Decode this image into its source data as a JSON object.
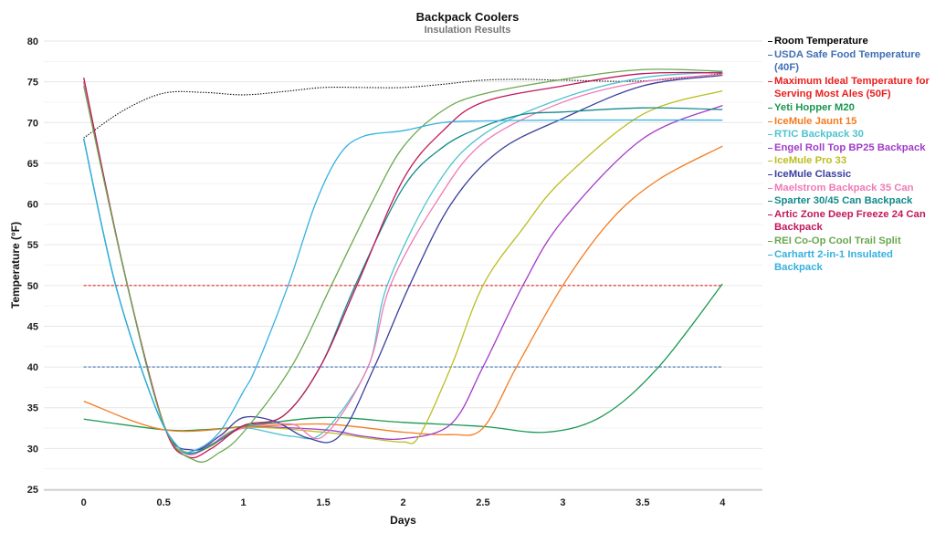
{
  "chart_data": {
    "type": "line",
    "title": "Backpack Coolers",
    "subtitle": "Insulation Results",
    "xlabel": "Days",
    "ylabel": "Temperature (°F)",
    "xlim": [
      -0.25,
      4.25
    ],
    "ylim": [
      25,
      80
    ],
    "xticks": [
      "0",
      "0.5",
      "1",
      "1.5",
      "2",
      "2.5",
      "3",
      "3.5",
      "4"
    ],
    "yticks": [
      "25",
      "30",
      "35",
      "40",
      "45",
      "50",
      "55",
      "60",
      "65",
      "70",
      "75",
      "80"
    ],
    "grid": true,
    "legend_position": "right",
    "series": [
      {
        "name": "Room Temperature",
        "color": "#111111",
        "style": "dotted",
        "points": [
          [
            0,
            68.1
          ],
          [
            0.25,
            71.5
          ],
          [
            0.5,
            73.6
          ],
          [
            0.75,
            73.7
          ],
          [
            1,
            73.4
          ],
          [
            1.25,
            73.8
          ],
          [
            1.5,
            74.3
          ],
          [
            1.75,
            74.3
          ],
          [
            2,
            74.3
          ],
          [
            2.25,
            74.7
          ],
          [
            2.5,
            75.2
          ],
          [
            2.75,
            75.3
          ],
          [
            3,
            75.2
          ],
          [
            3.5,
            75.1
          ],
          [
            4,
            76
          ]
        ]
      },
      {
        "name": "USDA Safe Food Temperature (40F)",
        "color": "#3e6fb5",
        "style": "dashed",
        "points": [
          [
            0,
            40
          ],
          [
            4,
            40
          ]
        ]
      },
      {
        "name": "Maximum Ideal Temperature for Serving Most Ales (50F)",
        "color": "#e8201d",
        "style": "dashed",
        "points": [
          [
            0,
            50
          ],
          [
            4,
            50
          ]
        ]
      },
      {
        "name": "Yeti Hopper M20",
        "color": "#1a9850",
        "style": "solid",
        "points": [
          [
            0,
            33.6
          ],
          [
            0.5,
            32.3
          ],
          [
            0.75,
            32.3
          ],
          [
            1,
            32.7
          ],
          [
            1.5,
            33.8
          ],
          [
            2,
            33.2
          ],
          [
            2.5,
            32.7
          ],
          [
            2.9,
            32
          ],
          [
            3.25,
            34
          ],
          [
            3.6,
            40
          ],
          [
            4,
            50.2
          ]
        ]
      },
      {
        "name": "IceMule Jaunt 15",
        "color": "#f47b20",
        "style": "solid",
        "points": [
          [
            0,
            35.8
          ],
          [
            0.5,
            32.3
          ],
          [
            1,
            32.6
          ],
          [
            1.5,
            33
          ],
          [
            2,
            32
          ],
          [
            2.3,
            31.7
          ],
          [
            2.5,
            32.5
          ],
          [
            2.71,
            40
          ],
          [
            3,
            50
          ],
          [
            3.3,
            58
          ],
          [
            3.6,
            63
          ],
          [
            4,
            67.1
          ]
        ]
      },
      {
        "name": "RTIC Backpack 30",
        "color": "#4fc3d0",
        "style": "solid",
        "points": [
          [
            0,
            68
          ],
          [
            0.2,
            50
          ],
          [
            0.45,
            35
          ],
          [
            0.6,
            30
          ],
          [
            0.7,
            29.8
          ],
          [
            0.85,
            31
          ],
          [
            1,
            32.5
          ],
          [
            1.3,
            31.5
          ],
          [
            1.5,
            32
          ],
          [
            1.78,
            40
          ],
          [
            1.9,
            50
          ],
          [
            2.2,
            62
          ],
          [
            2.5,
            68.5
          ],
          [
            3,
            73
          ],
          [
            3.5,
            75.5
          ],
          [
            4,
            76.2
          ]
        ]
      },
      {
        "name": "Engel Roll Top BP25 Backpack",
        "color": "#a23cc8",
        "style": "solid",
        "points": [
          [
            0,
            75
          ],
          [
            0.25,
            52
          ],
          [
            0.5,
            33
          ],
          [
            0.65,
            29.5
          ],
          [
            0.8,
            30.5
          ],
          [
            1,
            32.5
          ],
          [
            1.5,
            32.3
          ],
          [
            1.75,
            31.5
          ],
          [
            2,
            31.2
          ],
          [
            2.3,
            33
          ],
          [
            2.5,
            40
          ],
          [
            2.75,
            50
          ],
          [
            3,
            58
          ],
          [
            3.5,
            68
          ],
          [
            4,
            72.1
          ]
        ]
      },
      {
        "name": "IceMule Pro 33",
        "color": "#bcbd22",
        "style": "solid",
        "points": [
          [
            0,
            75
          ],
          [
            0.25,
            52
          ],
          [
            0.5,
            33
          ],
          [
            0.65,
            29.5
          ],
          [
            0.8,
            30.3
          ],
          [
            1,
            32.5
          ],
          [
            1.5,
            32
          ],
          [
            1.8,
            31.2
          ],
          [
            2,
            30.8
          ],
          [
            2.1,
            31.5
          ],
          [
            2.3,
            40
          ],
          [
            2.5,
            50
          ],
          [
            2.75,
            57
          ],
          [
            3,
            63
          ],
          [
            3.5,
            71
          ],
          [
            4,
            73.9
          ]
        ]
      },
      {
        "name": "IceMule Classic",
        "color": "#3a3f9e",
        "style": "solid",
        "points": [
          [
            0,
            75
          ],
          [
            0.25,
            52
          ],
          [
            0.5,
            33
          ],
          [
            0.68,
            29.8
          ],
          [
            0.85,
            31.5
          ],
          [
            1,
            33.8
          ],
          [
            1.2,
            33.3
          ],
          [
            1.4,
            31.3
          ],
          [
            1.6,
            31.5
          ],
          [
            1.82,
            40
          ],
          [
            2.04,
            50
          ],
          [
            2.3,
            60
          ],
          [
            2.6,
            66.5
          ],
          [
            3,
            70.5
          ],
          [
            3.5,
            74.5
          ],
          [
            4,
            75.8
          ]
        ]
      },
      {
        "name": "Maelstrom Backpack 35 Can",
        "color": "#f07ab6",
        "style": "solid",
        "points": [
          [
            0,
            75
          ],
          [
            0.25,
            52
          ],
          [
            0.5,
            33
          ],
          [
            0.65,
            29.3
          ],
          [
            0.8,
            30.5
          ],
          [
            1,
            32.5
          ],
          [
            1.3,
            33
          ],
          [
            1.5,
            31.5
          ],
          [
            1.78,
            40
          ],
          [
            1.92,
            50
          ],
          [
            2.2,
            60
          ],
          [
            2.5,
            67.5
          ],
          [
            3,
            72.5
          ],
          [
            3.5,
            75
          ],
          [
            4,
            75.9
          ]
        ]
      },
      {
        "name": "Sparter 30/45 Can Backpack",
        "color": "#138a8a",
        "style": "solid",
        "points": [
          [
            0,
            68
          ],
          [
            0.2,
            50
          ],
          [
            0.45,
            35
          ],
          [
            0.6,
            30
          ],
          [
            0.7,
            29.5
          ],
          [
            0.85,
            31
          ],
          [
            1,
            32.8
          ],
          [
            1.25,
            34
          ],
          [
            1.48,
            40
          ],
          [
            1.7,
            50
          ],
          [
            2,
            62
          ],
          [
            2.25,
            67
          ],
          [
            2.5,
            69.5
          ],
          [
            2.75,
            71
          ],
          [
            3,
            71.3
          ],
          [
            3.5,
            71.8
          ],
          [
            4,
            71.6
          ]
        ]
      },
      {
        "name": "Artic Zone Deep Freeze 24 Can Backpack",
        "color": "#c2185b",
        "style": "solid",
        "points": [
          [
            0,
            75.5
          ],
          [
            0.25,
            52
          ],
          [
            0.5,
            33
          ],
          [
            0.65,
            29
          ],
          [
            0.8,
            30
          ],
          [
            1,
            32.8
          ],
          [
            1.25,
            34
          ],
          [
            1.48,
            40
          ],
          [
            1.71,
            50
          ],
          [
            2,
            63
          ],
          [
            2.25,
            69
          ],
          [
            2.5,
            72.5
          ],
          [
            3,
            74.5
          ],
          [
            3.5,
            76
          ],
          [
            4,
            76.1
          ]
        ]
      },
      {
        "name": "REI Co-Op Cool Trail Split",
        "color": "#6aa84f",
        "style": "solid",
        "points": [
          [
            0,
            74.5
          ],
          [
            0.25,
            52
          ],
          [
            0.5,
            33
          ],
          [
            0.7,
            28.5
          ],
          [
            0.85,
            29.5
          ],
          [
            1,
            32
          ],
          [
            1.3,
            40
          ],
          [
            1.55,
            50
          ],
          [
            1.8,
            60
          ],
          [
            2,
            67
          ],
          [
            2.25,
            71.5
          ],
          [
            2.5,
            73.5
          ],
          [
            3,
            75.3
          ],
          [
            3.5,
            76.5
          ],
          [
            4,
            76.3
          ]
        ]
      },
      {
        "name": "Carhartt 2-in-1 Insulated Backpack",
        "color": "#35b0e0",
        "style": "solid",
        "points": [
          [
            0,
            68
          ],
          [
            0.2,
            50
          ],
          [
            0.45,
            35
          ],
          [
            0.6,
            30
          ],
          [
            0.7,
            29.8
          ],
          [
            0.85,
            32
          ],
          [
            1,
            37
          ],
          [
            1.08,
            40
          ],
          [
            1.28,
            50
          ],
          [
            1.45,
            60
          ],
          [
            1.6,
            66
          ],
          [
            1.75,
            68.3
          ],
          [
            2,
            69
          ],
          [
            2.25,
            70
          ],
          [
            2.5,
            70.2
          ],
          [
            3,
            70.3
          ],
          [
            4,
            70.3
          ]
        ]
      }
    ]
  }
}
